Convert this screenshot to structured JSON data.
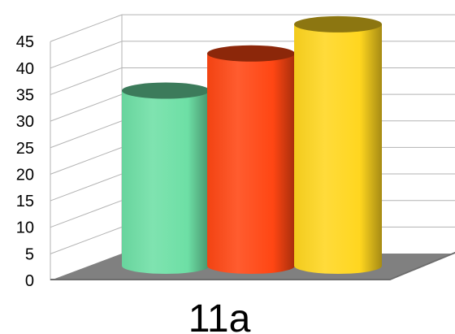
{
  "chart_data": {
    "type": "bar",
    "style": "3d-cylinder",
    "categories": [
      "11a"
    ],
    "series": [
      {
        "values": [
          33
        ],
        "color": "#6ddfa5"
      },
      {
        "values": [
          40
        ],
        "color": "#ff4613"
      },
      {
        "values": [
          45.5
        ],
        "color": "#ffd61f"
      }
    ],
    "ylim": [
      0,
      45
    ],
    "y_ticks": [
      "0",
      "5",
      "10",
      "15",
      "20",
      "25",
      "30",
      "35",
      "40",
      "45"
    ],
    "grid": true,
    "floor_color": "#808080",
    "grid_color": "#b3b3b3"
  }
}
